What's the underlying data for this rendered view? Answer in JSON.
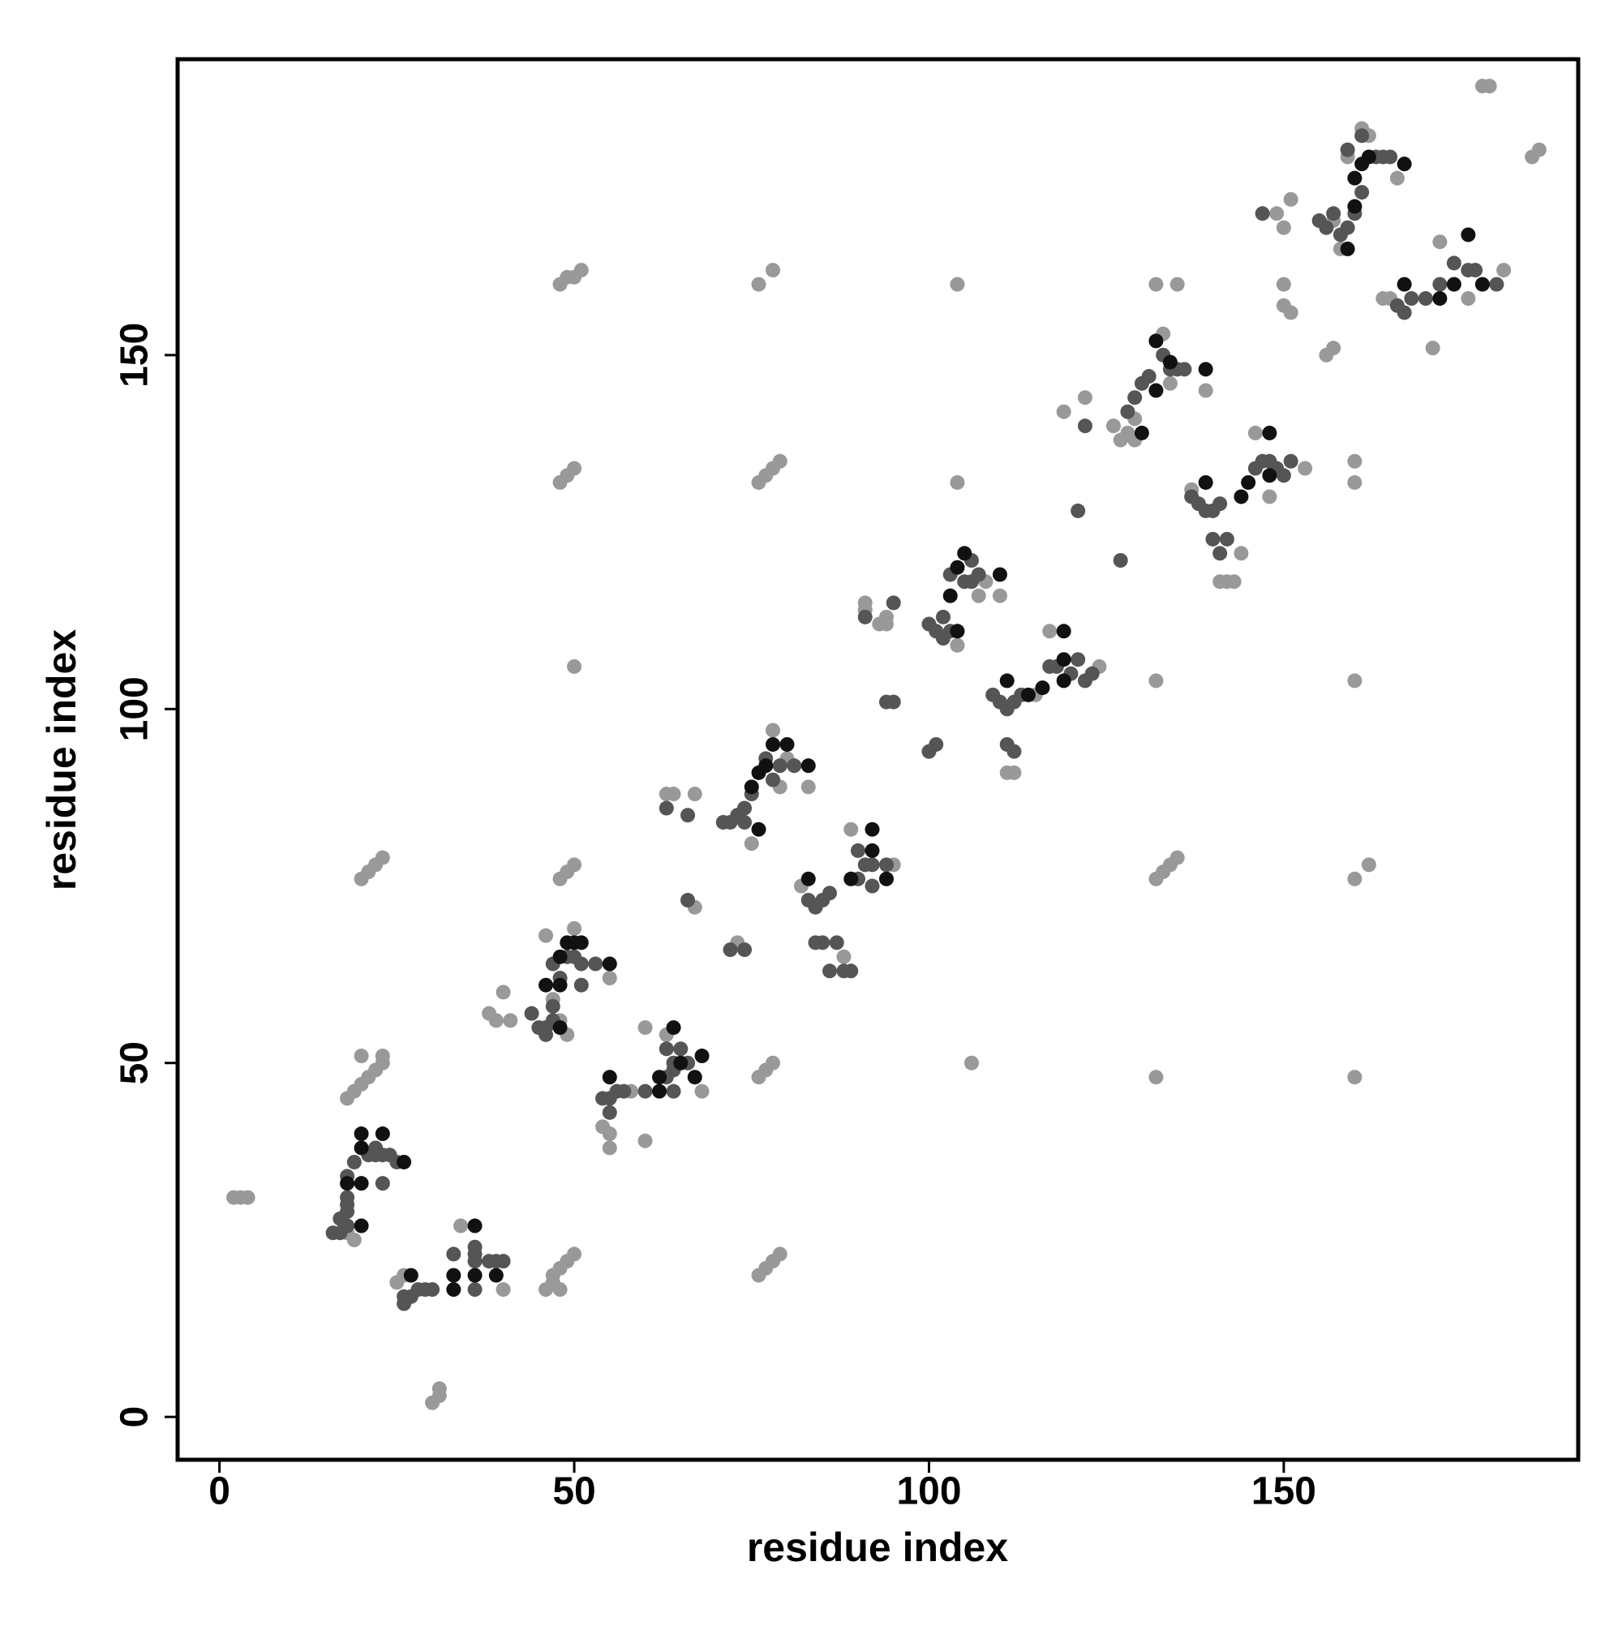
{
  "chart_data": {
    "type": "scatter",
    "xlabel": "residue index",
    "ylabel": "residue index",
    "xlim": [
      -5.9,
      191.5
    ],
    "ylim": [
      -6.05,
      191.8
    ],
    "xticks": [
      0,
      50,
      100,
      150
    ],
    "yticks": [
      0,
      50,
      100,
      150
    ],
    "series": [
      {
        "color": "#999999",
        "x": [
          2,
          3,
          4,
          30,
          31,
          31,
          20,
          21,
          22,
          23,
          18,
          19,
          20,
          21,
          22,
          23,
          20,
          23,
          48,
          49,
          50,
          51,
          48,
          49,
          50,
          48,
          49,
          50,
          50,
          76,
          78,
          76,
          77,
          78,
          79,
          76,
          77,
          78,
          76,
          77,
          78,
          79,
          47,
          48,
          49,
          50,
          46,
          47,
          48,
          104,
          104,
          106,
          132,
          135,
          132,
          133,
          134,
          135,
          132,
          132,
          160,
          160,
          160,
          160,
          160,
          162,
          156,
          157,
          178,
          179,
          185,
          186,
          18,
          19,
          25,
          26,
          34,
          40,
          39,
          40,
          38,
          41,
          47,
          48,
          49,
          46,
          50,
          55,
          58,
          60,
          63,
          68,
          55,
          54,
          60,
          55,
          75,
          78,
          79,
          80,
          83,
          63,
          64,
          67,
          67,
          73,
          82,
          89,
          88,
          95,
          91,
          91,
          94,
          93,
          94,
          104,
          107,
          108,
          110,
          111,
          112,
          117,
          115,
          124,
          126,
          127,
          128,
          129,
          129,
          133,
          134,
          139,
          119,
          122,
          137,
          141,
          142,
          143,
          144,
          146,
          148,
          153,
          150,
          149,
          150,
          151,
          157,
          158,
          159,
          161,
          162,
          166,
          150,
          151,
          164,
          165,
          171,
          172,
          176,
          181
        ],
        "y": [
          31,
          31,
          31,
          2,
          3,
          4,
          76,
          77,
          78,
          79,
          45,
          46,
          47,
          48,
          49,
          50,
          51,
          51,
          160,
          161,
          161,
          162,
          132,
          133,
          134,
          76,
          77,
          78,
          106,
          160,
          162,
          132,
          133,
          134,
          135,
          48,
          49,
          50,
          20,
          21,
          22,
          23,
          20,
          21,
          22,
          23,
          18,
          19,
          18,
          160,
          132,
          50,
          160,
          160,
          76,
          77,
          78,
          79,
          48,
          104,
          104,
          132,
          135,
          48,
          76,
          78,
          150,
          151,
          188,
          188,
          178,
          179,
          26,
          25,
          19,
          20,
          27,
          18,
          56,
          60,
          57,
          56,
          59,
          56,
          54,
          68,
          69,
          62,
          46,
          55,
          54,
          46,
          40,
          41,
          39,
          38,
          81,
          97,
          89,
          93,
          89,
          88,
          88,
          88,
          72,
          67,
          75,
          83,
          65,
          78,
          115,
          114,
          112,
          112,
          113,
          109,
          116,
          118,
          116,
          91,
          91,
          111,
          102,
          106,
          140,
          138,
          139,
          141,
          138,
          153,
          146,
          145,
          142,
          144,
          131,
          118,
          118,
          118,
          122,
          139,
          130,
          134,
          160,
          170,
          168,
          172,
          169,
          165,
          178,
          182,
          181,
          175,
          157,
          156,
          158,
          158,
          151,
          166,
          158,
          162
        ]
      },
      {
        "color": "#555555",
        "x": [
          16,
          17,
          18,
          17,
          18,
          18,
          18,
          18,
          19,
          21,
          22,
          23,
          24,
          25,
          22,
          23,
          26,
          26,
          27,
          28,
          29,
          30,
          36,
          36,
          36,
          38,
          39,
          40,
          33,
          36,
          44,
          45,
          46,
          47,
          46,
          47,
          47,
          48,
          49,
          50,
          51,
          53,
          51,
          54,
          55,
          55,
          56,
          57,
          63,
          64,
          64,
          65,
          66,
          63,
          60,
          64,
          71,
          72,
          73,
          74,
          74,
          75,
          77,
          78,
          79,
          81,
          63,
          66,
          66,
          72,
          74,
          83,
          84,
          85,
          86,
          84,
          85,
          86,
          87,
          88,
          89,
          90,
          91,
          92,
          92,
          94,
          90,
          91,
          95,
          94,
          95,
          100,
          101,
          100,
          101,
          102,
          103,
          102,
          103,
          105,
          106,
          107,
          106,
          109,
          110,
          111,
          112,
          113,
          111,
          112,
          117,
          118,
          120,
          121,
          122,
          123,
          128,
          129,
          130,
          131,
          133,
          134,
          135,
          136,
          127,
          121,
          122,
          137,
          138,
          139,
          140,
          141,
          140,
          141,
          146,
          147,
          148,
          149,
          150,
          151,
          142,
          155,
          156,
          157,
          158,
          159,
          160,
          161,
          159,
          161,
          163,
          164,
          165,
          147,
          166,
          167,
          168,
          170,
          172,
          174,
          176,
          177,
          180
        ],
        "y": [
          26,
          26,
          27,
          28,
          29,
          30,
          31,
          34,
          36,
          37,
          37,
          37,
          37,
          36,
          38,
          33,
          16,
          17,
          17,
          18,
          18,
          18,
          22,
          23,
          24,
          22,
          22,
          22,
          23,
          18,
          57,
          55,
          55,
          56,
          54,
          58,
          64,
          62,
          65,
          65,
          64,
          64,
          61,
          45,
          45,
          43,
          46,
          46,
          52,
          50,
          49,
          52,
          50,
          48,
          46,
          46,
          84,
          84,
          85,
          86,
          84,
          88,
          93,
          90,
          92,
          92,
          86,
          85,
          73,
          66,
          66,
          73,
          72,
          73,
          74,
          67,
          67,
          63,
          67,
          63,
          63,
          80,
          78,
          78,
          75,
          78,
          76,
          113,
          115,
          101,
          101,
          94,
          95,
          112,
          111,
          110,
          111,
          113,
          119,
          118,
          118,
          119,
          121,
          102,
          101,
          100,
          101,
          102,
          95,
          94,
          106,
          106,
          105,
          107,
          104,
          105,
          142,
          144,
          146,
          147,
          150,
          148,
          148,
          148,
          121,
          128,
          140,
          130,
          129,
          128,
          128,
          129,
          124,
          122,
          134,
          135,
          135,
          134,
          133,
          135,
          124,
          169,
          168,
          170,
          167,
          168,
          170,
          173,
          179,
          181,
          178,
          178,
          178,
          170,
          157,
          156,
          158,
          158,
          160,
          163,
          162,
          162,
          160
        ]
      },
      {
        "color": "#111111",
        "x": [
          20,
          23,
          20,
          20,
          18,
          26,
          20,
          27,
          33,
          33,
          36,
          36,
          39,
          48,
          48,
          48,
          49,
          50,
          51,
          55,
          46,
          55,
          62,
          62,
          64,
          65,
          67,
          68,
          75,
          76,
          77,
          78,
          80,
          83,
          76,
          83,
          89,
          92,
          94,
          92,
          103,
          104,
          104,
          105,
          110,
          111,
          114,
          116,
          119,
          119,
          119,
          130,
          132,
          132,
          134,
          139,
          139,
          144,
          145,
          148,
          148,
          160,
          160,
          161,
          162,
          167,
          159,
          167,
          172,
          174,
          176,
          178
        ],
        "y": [
          40,
          40,
          33,
          27,
          33,
          36,
          38,
          20,
          18,
          20,
          20,
          27,
          20,
          55,
          61,
          65,
          67,
          67,
          67,
          64,
          61,
          48,
          48,
          46,
          55,
          50,
          48,
          51,
          89,
          91,
          92,
          95,
          95,
          92,
          83,
          76,
          76,
          83,
          76,
          80,
          116,
          111,
          120,
          122,
          119,
          104,
          102,
          103,
          104,
          107,
          111,
          139,
          145,
          152,
          149,
          148,
          132,
          130,
          132,
          133,
          139,
          171,
          175,
          177,
          178,
          177,
          165,
          160,
          158,
          160,
          167,
          160
        ]
      }
    ]
  }
}
